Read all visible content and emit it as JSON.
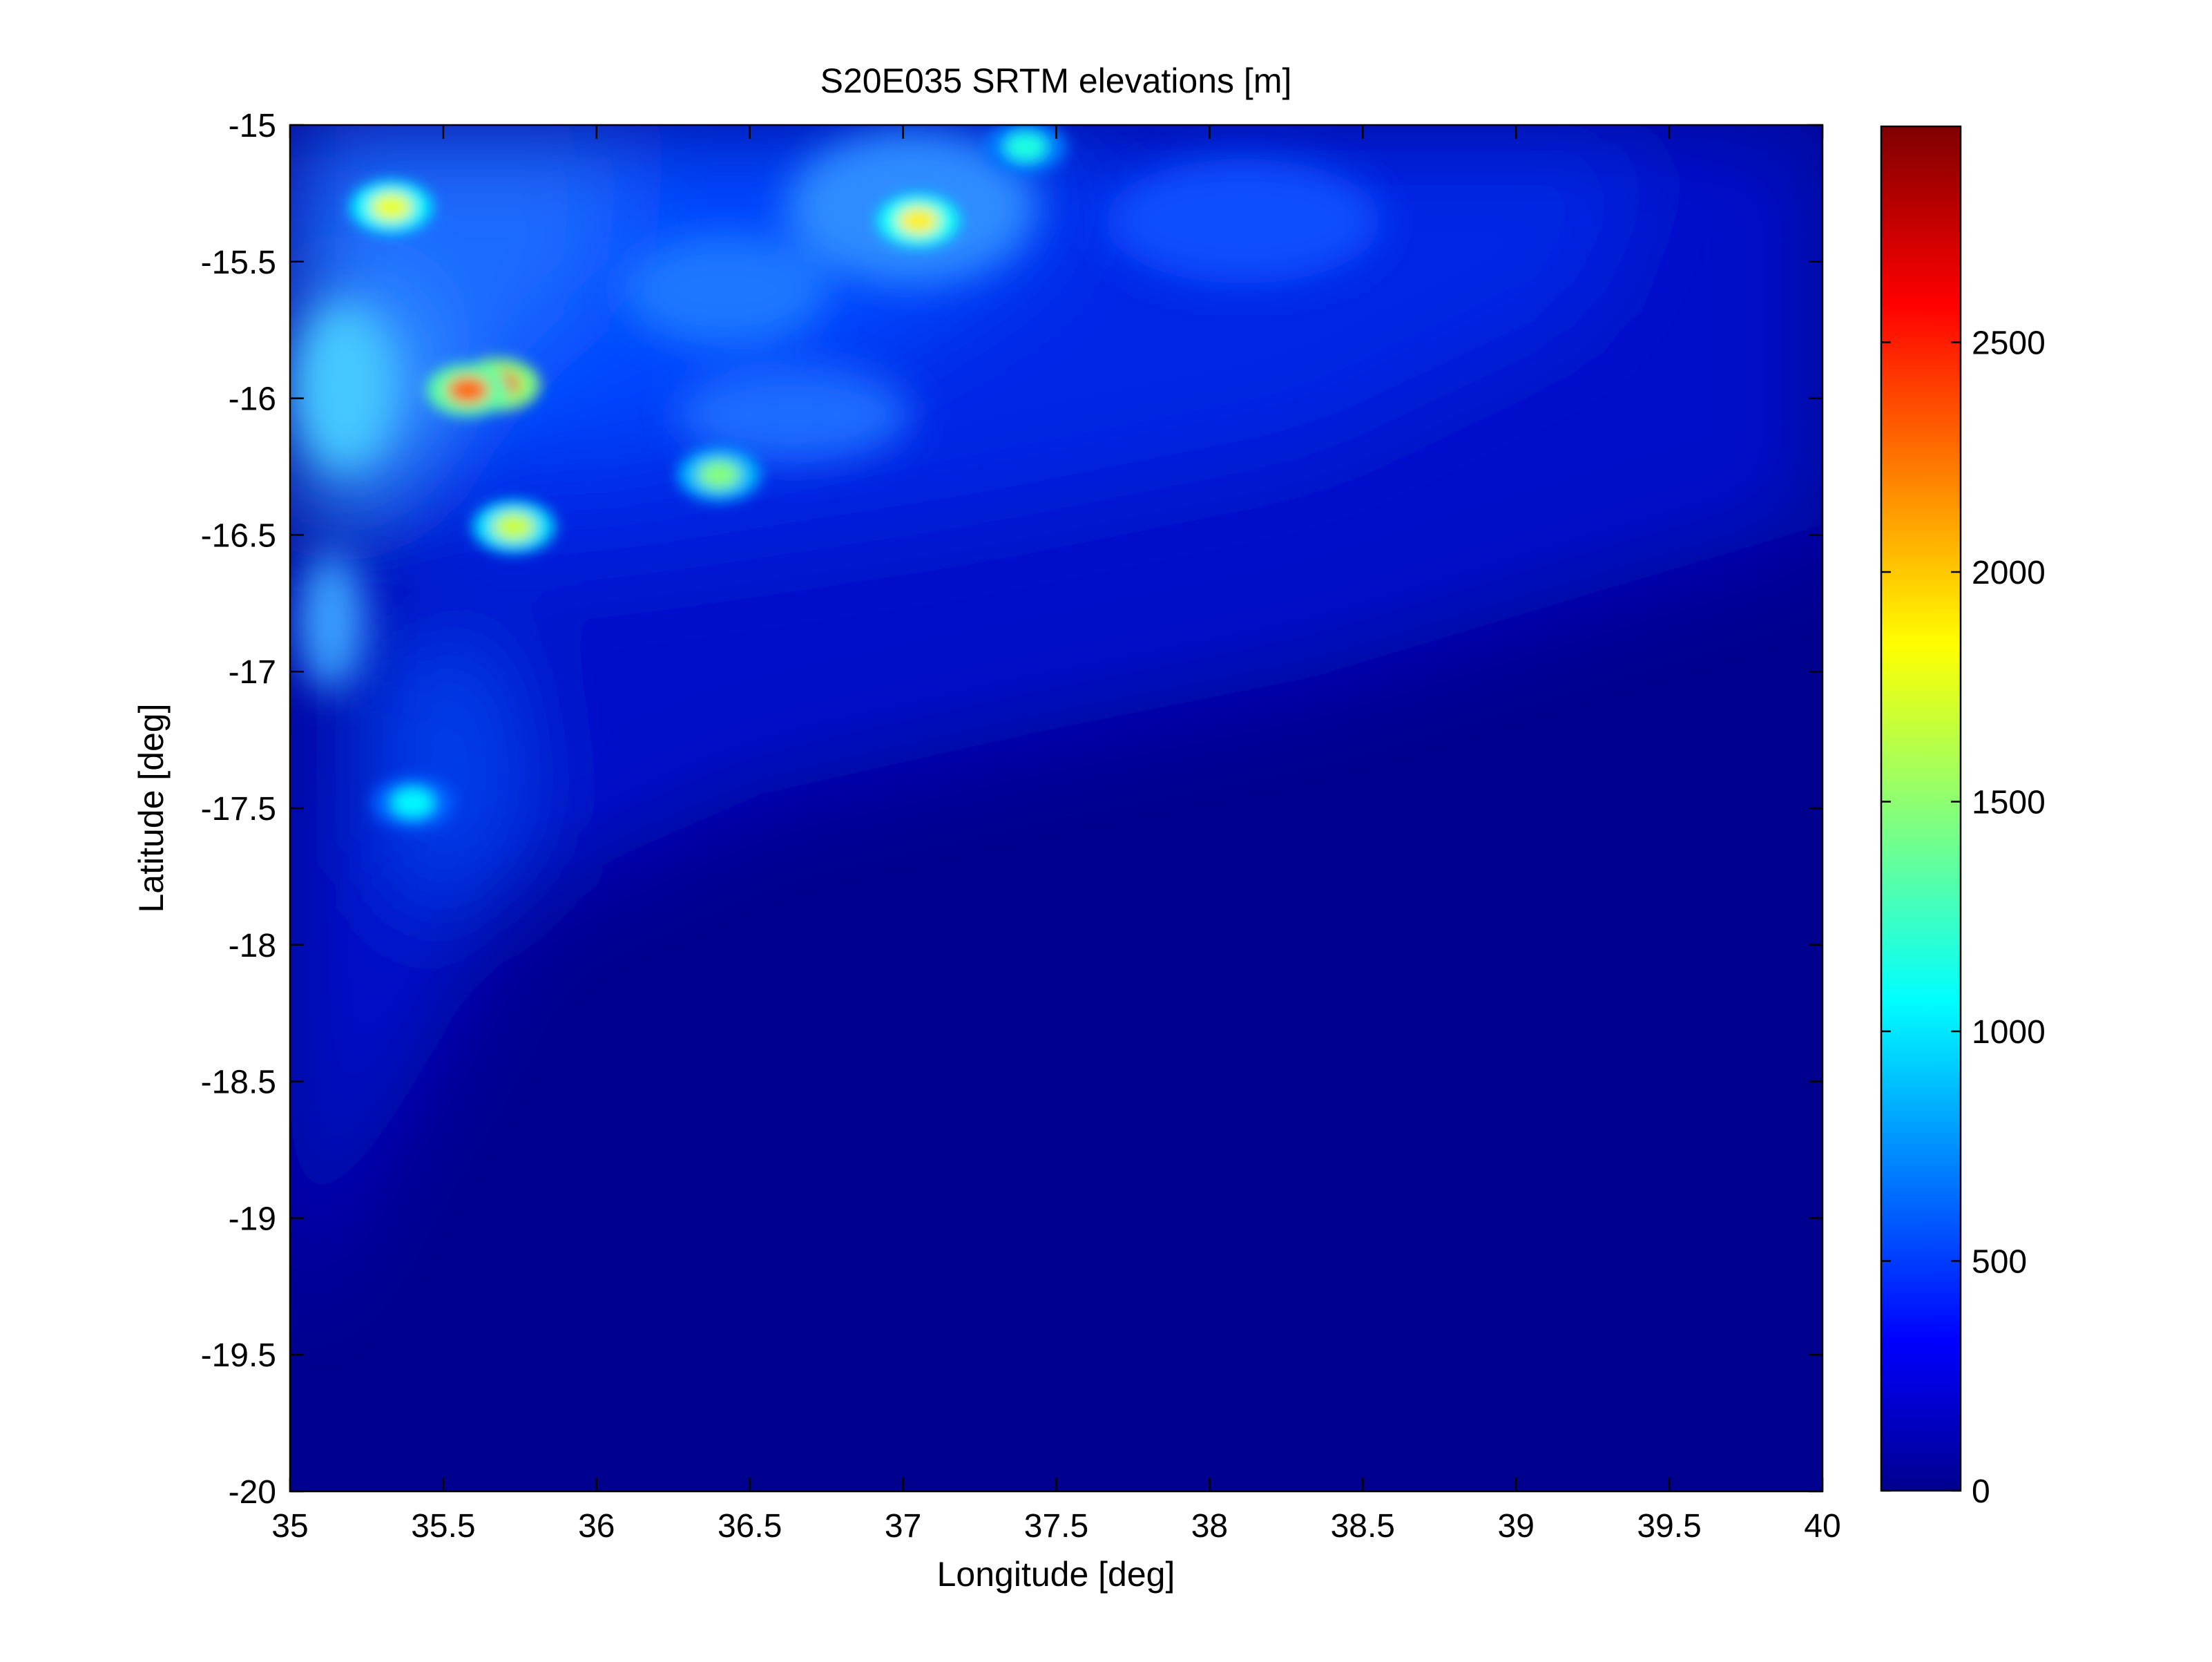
{
  "chart_data": {
    "type": "heatmap",
    "title": "S20E035 SRTM elevations [m]",
    "xlabel": "Longitude [deg]",
    "ylabel": "Latitude [deg]",
    "xlim": [
      35,
      40
    ],
    "ylim": [
      -20,
      -15
    ],
    "x_ticks": [
      "35",
      "35.5",
      "36",
      "36.5",
      "37",
      "37.5",
      "38",
      "38.5",
      "39",
      "39.5",
      "40"
    ],
    "y_ticks": [
      "-15",
      "-15.5",
      "-16",
      "-16.5",
      "-17",
      "-17.5",
      "-18",
      "-18.5",
      "-19",
      "-19.5",
      "-20"
    ],
    "colormap": "jet",
    "colorbar": {
      "range": [
        0,
        2970
      ],
      "ticks": [
        "0",
        "500",
        "1000",
        "1500",
        "2000",
        "2500"
      ],
      "tick_values": [
        0,
        500,
        1000,
        1500,
        2000,
        2500
      ]
    },
    "grid": false,
    "features": [
      {
        "lon": 35.68,
        "lat": -15.95,
        "elevation": 2500
      },
      {
        "lon": 35.58,
        "lat": -15.97,
        "elevation": 2300
      },
      {
        "lon": 37.05,
        "lat": -15.35,
        "elevation": 1900
      },
      {
        "lon": 35.33,
        "lat": -15.3,
        "elevation": 1800
      },
      {
        "lon": 36.4,
        "lat": -16.28,
        "elevation": 1500
      },
      {
        "lon": 35.73,
        "lat": -16.47,
        "elevation": 1700
      },
      {
        "lon": 37.4,
        "lat": -15.08,
        "elevation": 1200
      },
      {
        "lon": 35.4,
        "lat": -17.48,
        "elevation": 1100
      }
    ]
  }
}
